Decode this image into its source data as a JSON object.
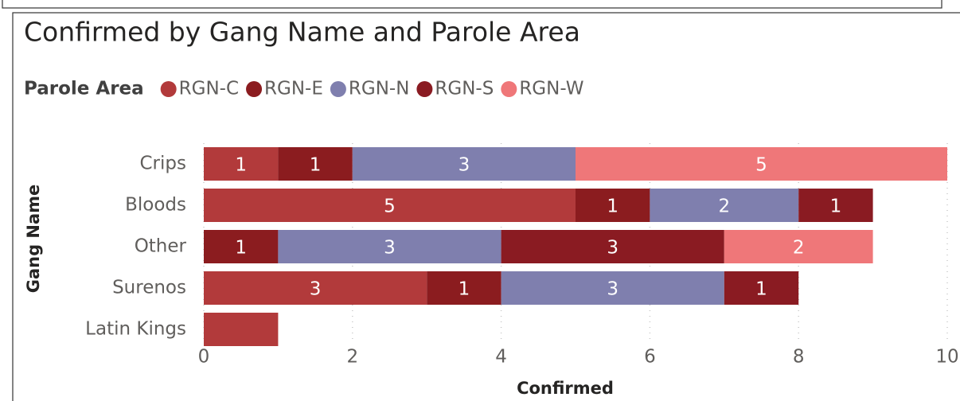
{
  "chart_data": {
    "type": "stacked_bar_horizontal",
    "title": "Confirmed by Gang Name and Parole Area",
    "legend_title": "Parole Area",
    "x_label": "Confirmed",
    "y_label": "Gang Name",
    "categories": [
      "Crips",
      "Bloods",
      "Other",
      "Surenos",
      "Latin Kings"
    ],
    "series": [
      {
        "name": "RGN-C",
        "color": "#b23a3b",
        "values": [
          1,
          5,
          0,
          3,
          1
        ]
      },
      {
        "name": "RGN-E",
        "color": "#8b1c1f",
        "values": [
          1,
          1,
          1,
          1,
          0
        ]
      },
      {
        "name": "RGN-N",
        "color": "#7f7fae",
        "values": [
          3,
          2,
          3,
          3,
          0
        ]
      },
      {
        "name": "RGN-S",
        "color": "#8a1b22",
        "values": [
          0,
          1,
          3,
          1,
          0
        ]
      },
      {
        "name": "RGN-W",
        "color": "#ef7779",
        "values": [
          5,
          0,
          2,
          0,
          0
        ]
      }
    ],
    "xlim": [
      0,
      10
    ],
    "xticks": [
      0,
      2,
      4,
      6,
      8,
      10
    ],
    "grid": true
  }
}
